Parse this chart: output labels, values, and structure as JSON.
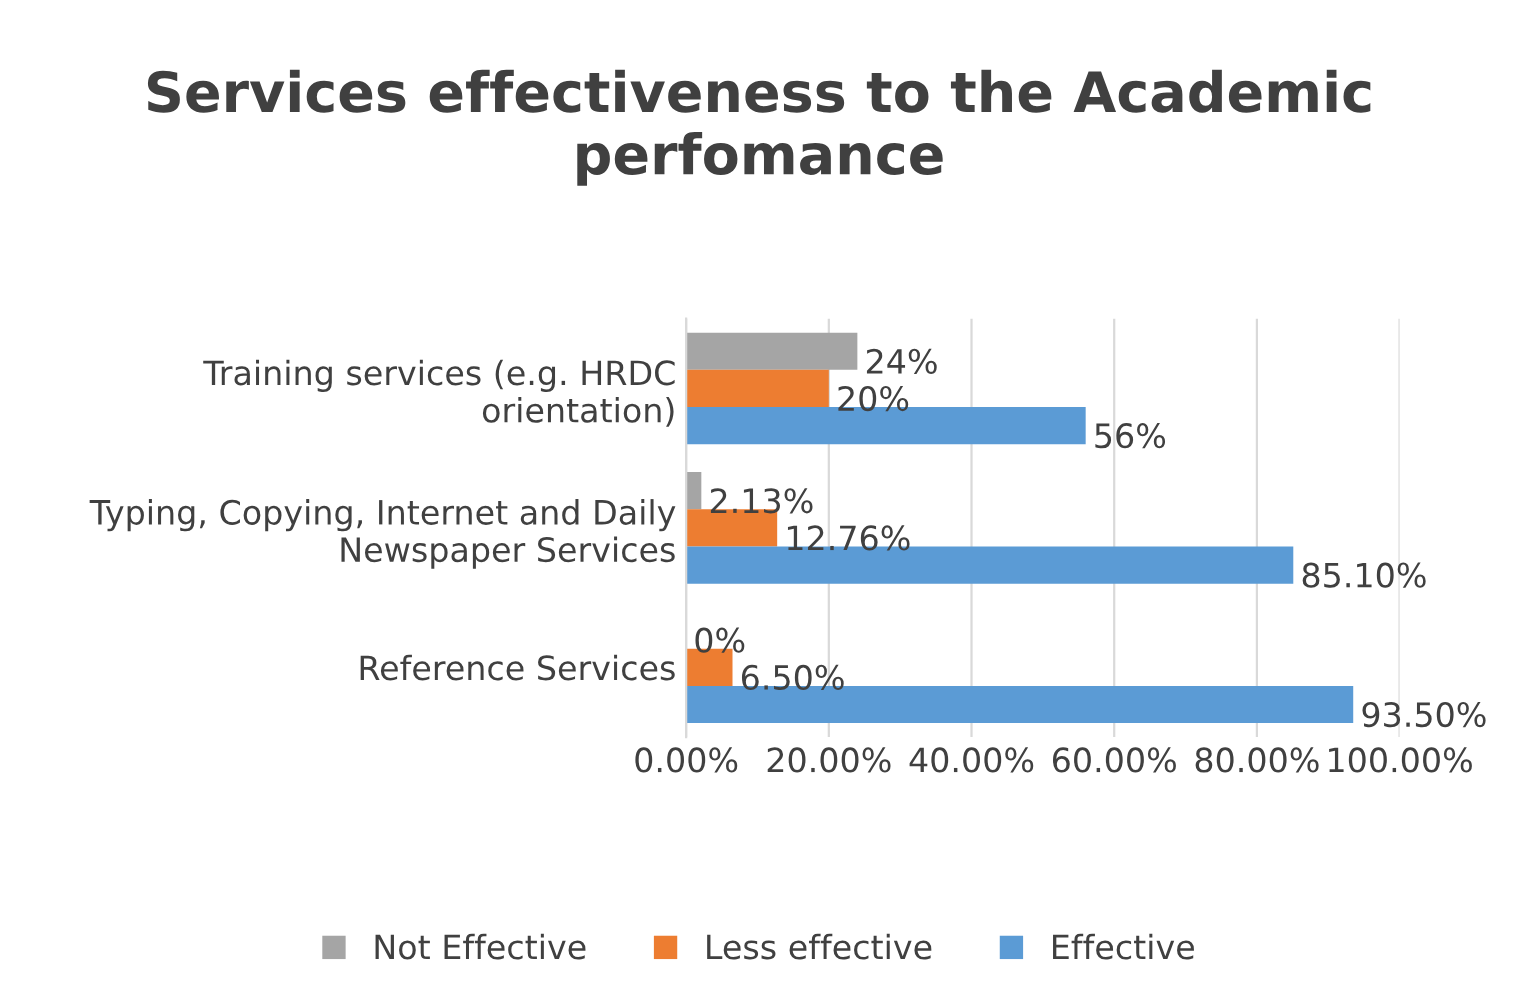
{
  "chart_data": {
    "type": "bar",
    "orientation": "horizontal",
    "title": "Services effectiveness to the Academic perfomance",
    "categories": [
      "Training services (e.g. HRDC orientation)",
      "Typing, Copying, Internet and Daily Newspaper Services",
      "Reference Services"
    ],
    "series": [
      {
        "name": "Not Effective",
        "color": "#a5a5a5",
        "values": [
          24,
          2.13,
          0
        ],
        "value_labels": [
          "24%",
          "2.13%",
          "0%"
        ]
      },
      {
        "name": "Less effective",
        "color": "#ed7d31",
        "values": [
          20,
          12.76,
          6.5
        ],
        "value_labels": [
          "20%",
          "12.76%",
          "6.50%"
        ]
      },
      {
        "name": "Effective",
        "color": "#5b9bd5",
        "values": [
          56,
          85.1,
          93.5
        ],
        "value_labels": [
          "56%",
          "85.10%",
          "93.50%"
        ]
      }
    ],
    "xlim": [
      0,
      100
    ],
    "xticks": [
      {
        "value": 0,
        "label": "0.00%"
      },
      {
        "value": 20,
        "label": "20.00%"
      },
      {
        "value": 40,
        "label": "40.00%"
      },
      {
        "value": 60,
        "label": "60.00%"
      },
      {
        "value": 80,
        "label": "80.00%"
      },
      {
        "value": 100,
        "label": "100.00%"
      }
    ],
    "grid": "x",
    "legend": "bottom"
  }
}
